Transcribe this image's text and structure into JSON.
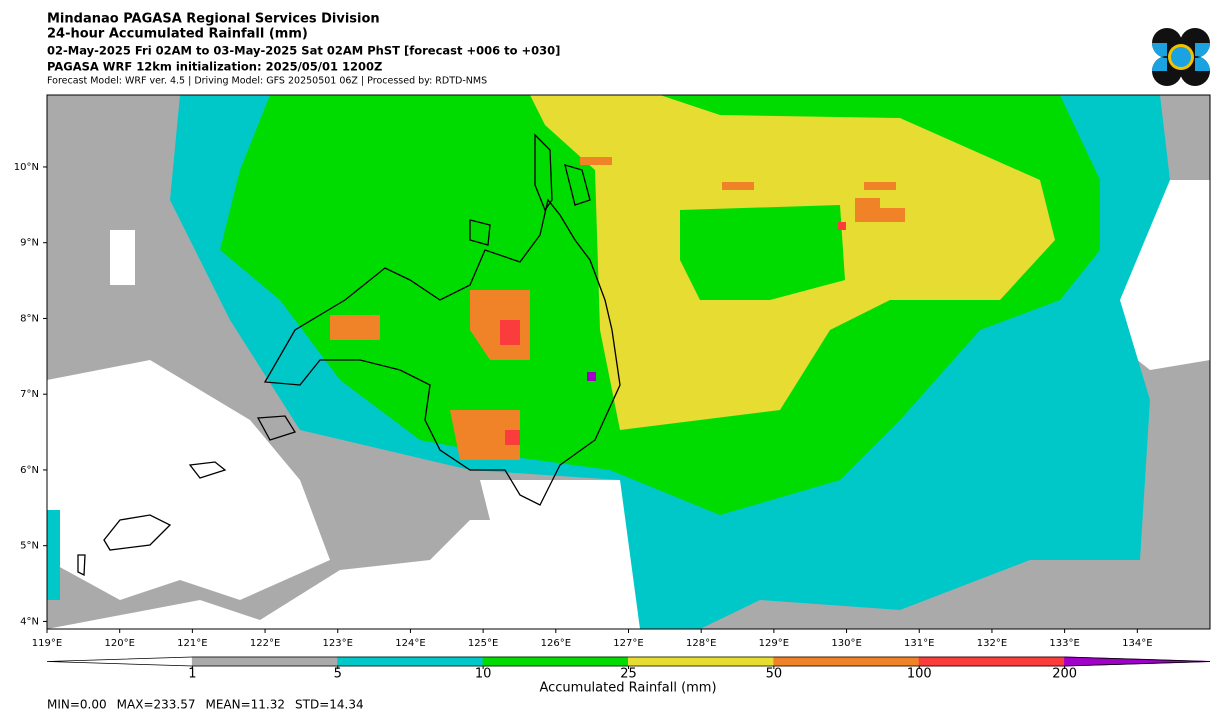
{
  "header": {
    "title": "Mindanao PAGASA Regional Services Division",
    "subtitle": "24-hour Accumulated Rainfall (mm)",
    "period": "02-May-2025 Fri 02AM to 03-May-2025 Sat 02AM PhST [forecast +006 to +030]",
    "init": "PAGASA WRF 12km initialization: 2025/05/01 1200Z",
    "models": "Forecast Model: WRF ver. 4.5 | Driving Model: GFS 20250501 06Z | Processed by: RDTD-NMS"
  },
  "map": {
    "xlim": [
      119,
      135
    ],
    "ylim": [
      3.9,
      10.95
    ],
    "xticks": [
      {
        "value": 119,
        "label": "119°E"
      },
      {
        "value": 120,
        "label": "120°E"
      },
      {
        "value": 121,
        "label": "121°E"
      },
      {
        "value": 122,
        "label": "122°E"
      },
      {
        "value": 123,
        "label": "123°E"
      },
      {
        "value": 124,
        "label": "124°E"
      },
      {
        "value": 125,
        "label": "125°E"
      },
      {
        "value": 126,
        "label": "126°E"
      },
      {
        "value": 127,
        "label": "127°E"
      },
      {
        "value": 128,
        "label": "128°E"
      },
      {
        "value": 129,
        "label": "129°E"
      },
      {
        "value": 130,
        "label": "130°E"
      },
      {
        "value": 131,
        "label": "131°E"
      },
      {
        "value": 132,
        "label": "132°E"
      },
      {
        "value": 133,
        "label": "133°E"
      },
      {
        "value": 134,
        "label": "134°E"
      }
    ],
    "yticks": [
      {
        "value": 4,
        "label": "4°N"
      },
      {
        "value": 5,
        "label": "5°N"
      },
      {
        "value": 6,
        "label": "6°N"
      },
      {
        "value": 7,
        "label": "7°N"
      },
      {
        "value": 8,
        "label": "8°N"
      },
      {
        "value": 9,
        "label": "9°N"
      },
      {
        "value": 10,
        "label": "10°N"
      }
    ]
  },
  "colorbar": {
    "label": "Accumulated Rainfall (mm)",
    "levels": [
      1,
      5,
      10,
      25,
      50,
      100,
      200
    ],
    "colors": [
      "#ffffff",
      "#aaaaaa",
      "#00c8c8",
      "#00dc00",
      "#e6dc32",
      "#f08228",
      "#fa3c3c",
      "#a000c8"
    ]
  },
  "stats": [
    "MIN=0.00",
    "MAX=233.57",
    "MEAN=11.32",
    "STD=14.34"
  ]
}
